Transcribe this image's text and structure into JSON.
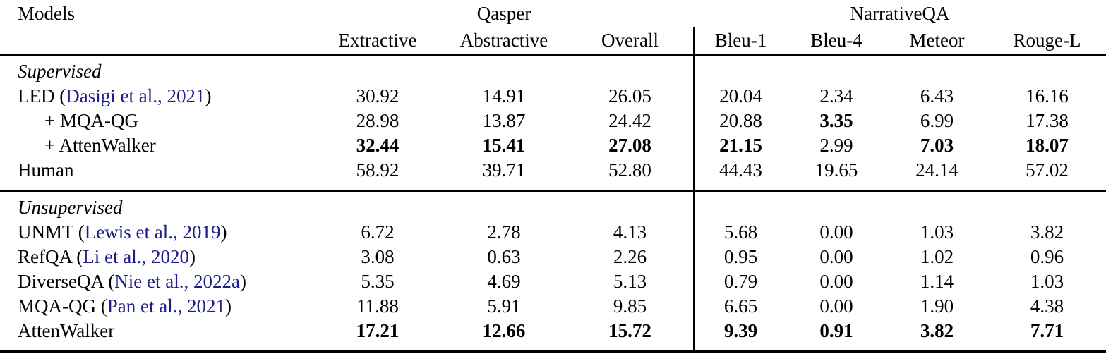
{
  "table": {
    "colors": {
      "text": "#000000",
      "citation_link": "#1d1d8c",
      "rule": "#000000"
    },
    "punctuation": {
      "open_paren": " (",
      "close_paren": ")"
    },
    "header": {
      "models_label": "Models",
      "groups": [
        {
          "label": "Qasper",
          "columns": [
            "Extractive",
            "Abstractive",
            "Overall"
          ]
        },
        {
          "label": "NarrativeQA",
          "columns": [
            "Bleu-1",
            "Bleu-4",
            "Meteor",
            "Rouge-L"
          ]
        }
      ]
    },
    "sections": [
      {
        "label": "Supervised",
        "rows": [
          {
            "model": "LED",
            "citation": "Dasigi et al., 2021",
            "indent": false,
            "values": [
              "30.92",
              "14.91",
              "26.05",
              "20.04",
              "2.34",
              "6.43",
              "16.16"
            ],
            "bold": []
          },
          {
            "model": "+ MQA-QG",
            "citation": null,
            "indent": true,
            "values": [
              "28.98",
              "13.87",
              "24.42",
              "20.88",
              "3.35",
              "6.99",
              "17.38"
            ],
            "bold": [
              4
            ]
          },
          {
            "model": "+ AttenWalker",
            "citation": null,
            "indent": true,
            "values": [
              "32.44",
              "15.41",
              "27.08",
              "21.15",
              "2.99",
              "7.03",
              "18.07"
            ],
            "bold": [
              0,
              1,
              2,
              3,
              5,
              6
            ]
          },
          {
            "model": "Human",
            "citation": null,
            "indent": false,
            "values": [
              "58.92",
              "39.71",
              "52.80",
              "44.43",
              "19.65",
              "24.14",
              "57.02"
            ],
            "bold": []
          }
        ]
      },
      {
        "label": "Unsupervised",
        "rows": [
          {
            "model": "UNMT",
            "citation": "Lewis et al., 2019",
            "indent": false,
            "values": [
              "6.72",
              "2.78",
              "4.13",
              "5.68",
              "0.00",
              "1.03",
              "3.82"
            ],
            "bold": []
          },
          {
            "model": "RefQA",
            "citation": "Li et al., 2020",
            "indent": false,
            "values": [
              "3.08",
              "0.63",
              "2.26",
              "0.95",
              "0.00",
              "1.02",
              "0.96"
            ],
            "bold": []
          },
          {
            "model": "DiverseQA",
            "citation": "Nie et al., 2022a",
            "indent": false,
            "values": [
              "5.35",
              "4.69",
              "5.13",
              "0.79",
              "0.00",
              "1.14",
              "1.03"
            ],
            "bold": []
          },
          {
            "model": "MQA-QG",
            "citation": "Pan et al., 2021",
            "indent": false,
            "values": [
              "11.88",
              "5.91",
              "9.85",
              "6.65",
              "0.00",
              "1.90",
              "4.38"
            ],
            "bold": []
          },
          {
            "model": "AttenWalker",
            "citation": null,
            "indent": false,
            "values": [
              "17.21",
              "12.66",
              "15.72",
              "9.39",
              "0.91",
              "3.82",
              "7.71"
            ],
            "bold": [
              0,
              1,
              2,
              3,
              4,
              5,
              6
            ]
          }
        ]
      }
    ]
  }
}
